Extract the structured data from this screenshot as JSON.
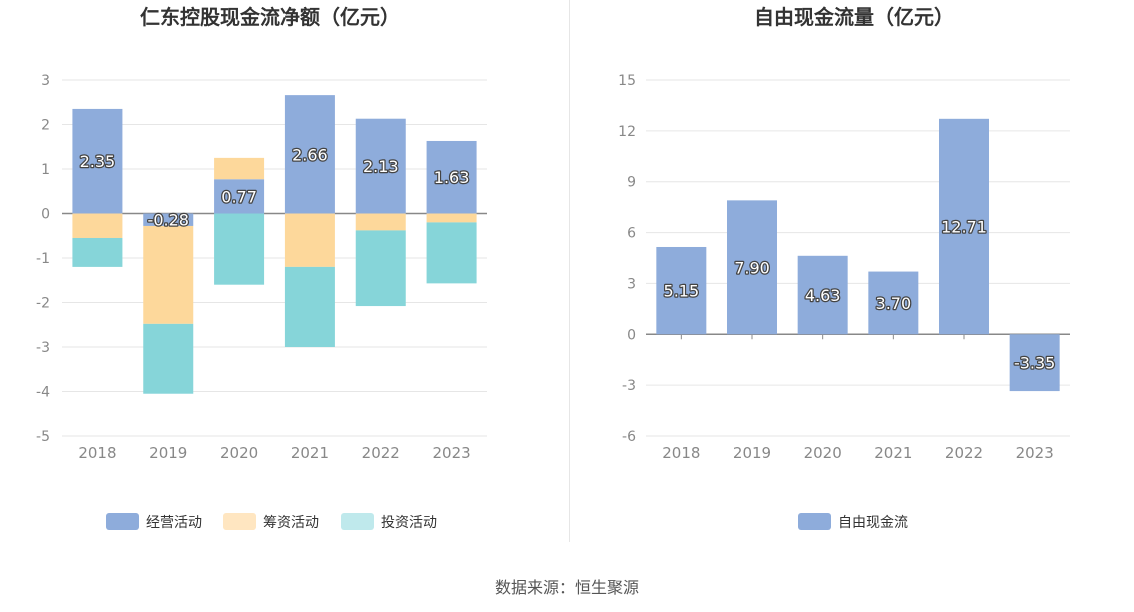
{
  "chart_data": [
    {
      "type": "bar",
      "stacked": true,
      "title": "仁东控股现金流净额（亿元）",
      "categories": [
        "2018",
        "2019",
        "2020",
        "2021",
        "2022",
        "2023"
      ],
      "ylim": [
        -5,
        3
      ],
      "yticks": [
        3,
        2,
        1,
        0,
        -1,
        -2,
        -3,
        -4,
        -5
      ],
      "grid": true,
      "legend_position": "bottom",
      "series": [
        {
          "name": "经营活动",
          "color": "#8eacdb",
          "values": [
            2.35,
            -0.28,
            0.77,
            2.66,
            2.13,
            1.63
          ],
          "labels": [
            "2.35",
            "-0.28",
            "0.77",
            "2.66",
            "2.13",
            "1.63"
          ]
        },
        {
          "name": "筹资活动",
          "color": "#fdd89b",
          "values": [
            -0.55,
            -2.2,
            0.48,
            -1.2,
            -0.38,
            -0.2
          ]
        },
        {
          "name": "投资活动",
          "color": "#86d5d9",
          "values": [
            -0.65,
            -1.57,
            -1.6,
            -1.8,
            -1.7,
            -1.37
          ]
        }
      ]
    },
    {
      "type": "bar",
      "title": "自由现金流量（亿元）",
      "categories": [
        "2018",
        "2019",
        "2020",
        "2021",
        "2022",
        "2023"
      ],
      "ylim": [
        -6,
        15
      ],
      "yticks": [
        15,
        12,
        9,
        6,
        3,
        0,
        -3,
        -6
      ],
      "grid": true,
      "legend_position": "bottom",
      "series": [
        {
          "name": "自由现金流",
          "color": "#8eacdb",
          "values": [
            5.15,
            7.9,
            4.63,
            3.7,
            12.71,
            -3.35
          ],
          "labels": [
            "5.15",
            "7.90",
            "4.63",
            "3.70",
            "12.71",
            "-3.35"
          ]
        }
      ]
    }
  ],
  "legend_colors": {
    "operating": "#8eacdb",
    "financing": "#ffe6c1",
    "investing": "#bfe9ec"
  },
  "source": "数据来源：恒生聚源"
}
